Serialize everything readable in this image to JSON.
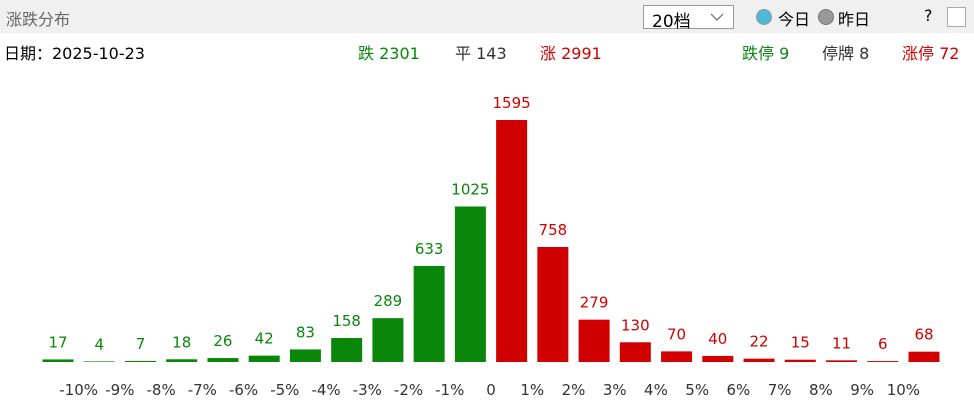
{
  "header": {
    "title": "涨跌分布",
    "dropdown": "20档",
    "option_today": "今日",
    "option_yesterday": "昨日",
    "help": "?"
  },
  "summary": {
    "date": "日期：2025-10-23",
    "down": "跌 2301",
    "flat": "平 143",
    "up": "涨 2991",
    "limit_down": "跌停 9",
    "suspended": "停牌 8",
    "limit_up": "涨停 72"
  },
  "chart_data": {
    "type": "bar",
    "values": [
      17,
      4,
      7,
      18,
      26,
      42,
      83,
      158,
      289,
      633,
      1025,
      1595,
      758,
      279,
      130,
      70,
      40,
      22,
      15,
      11,
      6,
      68
    ],
    "colors": [
      "#0a860a",
      "#0a860a",
      "#0a860a",
      "#0a860a",
      "#0a860a",
      "#0a860a",
      "#0a860a",
      "#0a860a",
      "#0a860a",
      "#0a860a",
      "#0a860a",
      "#d10000",
      "#d10000",
      "#d10000",
      "#d10000",
      "#d10000",
      "#d10000",
      "#d10000",
      "#d10000",
      "#d10000",
      "#d10000",
      "#d10000"
    ],
    "edge_labels": [
      "-10%",
      "-9%",
      "-8%",
      "-7%",
      "-6%",
      "-5%",
      "-4%",
      "-3%",
      "-2%",
      "-1%",
      "0",
      "1%",
      "2%",
      "3%",
      "4%",
      "5%",
      "6%",
      "7%",
      "8%",
      "9%",
      "10%"
    ]
  }
}
